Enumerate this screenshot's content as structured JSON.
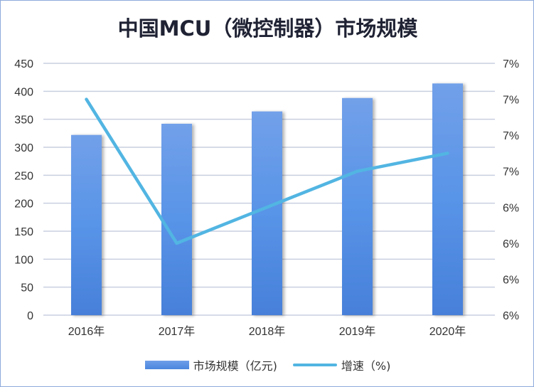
{
  "chart_data": {
    "type": "bar+line",
    "title": "中国MCU（微控制器）市场规模",
    "categories": [
      "2016年",
      "2017年",
      "2018年",
      "2019年",
      "2020年"
    ],
    "series": [
      {
        "name": "市场规模（亿元)",
        "type": "bar",
        "axis": "left",
        "values": [
          322,
          342,
          364,
          388,
          414
        ],
        "color": "#5b93e6"
      },
      {
        "name": "增速（%)",
        "type": "line",
        "axis": "right",
        "values": [
          7.0,
          6.2,
          6.4,
          6.6,
          6.7
        ],
        "color": "#52b5e2"
      }
    ],
    "left_axis": {
      "ylim": [
        0,
        450
      ],
      "ticks": [
        "0",
        "50",
        "100",
        "150",
        "200",
        "250",
        "300",
        "350",
        "400",
        "450"
      ]
    },
    "right_axis": {
      "ylim": [
        5.8,
        7.2
      ],
      "ticks": [
        "6%",
        "6%",
        "6%",
        "6%",
        "7%",
        "7%",
        "7%",
        "7%"
      ]
    },
    "grid": true,
    "legend": "bottom"
  }
}
